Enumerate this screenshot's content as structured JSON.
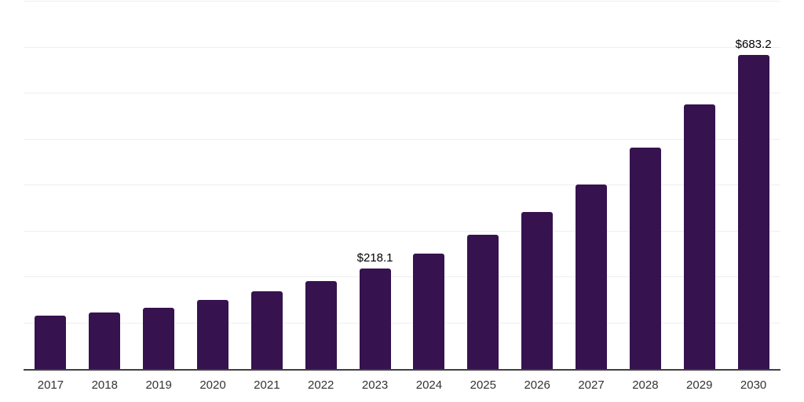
{
  "chart_data": {
    "type": "bar",
    "title": "",
    "categories": [
      "2017",
      "2018",
      "2019",
      "2020",
      "2021",
      "2022",
      "2023",
      "2024",
      "2025",
      "2026",
      "2027",
      "2028",
      "2029",
      "2030"
    ],
    "values": [
      115.7,
      123.2,
      134.0,
      150.4,
      169.7,
      191.3,
      218.1,
      250.9,
      291.7,
      341.6,
      402.4,
      481.7,
      575.3,
      683.2
    ],
    "value_labels": [
      "",
      "",
      "",
      "",
      "",
      "",
      "$218.1",
      "",
      "",
      "",
      "",
      "",
      "",
      "$683.2"
    ],
    "xlabel": "",
    "ylabel": "",
    "ylim": [
      0,
      800
    ],
    "grid_step": 100,
    "grid": "horizontal",
    "legend_position": "none",
    "colors": {
      "bar": "#36124E",
      "axis": "#404040",
      "gridline": "#efefef",
      "tick_label": "#333333",
      "value_label": "#000000",
      "background": "#ffffff"
    }
  }
}
